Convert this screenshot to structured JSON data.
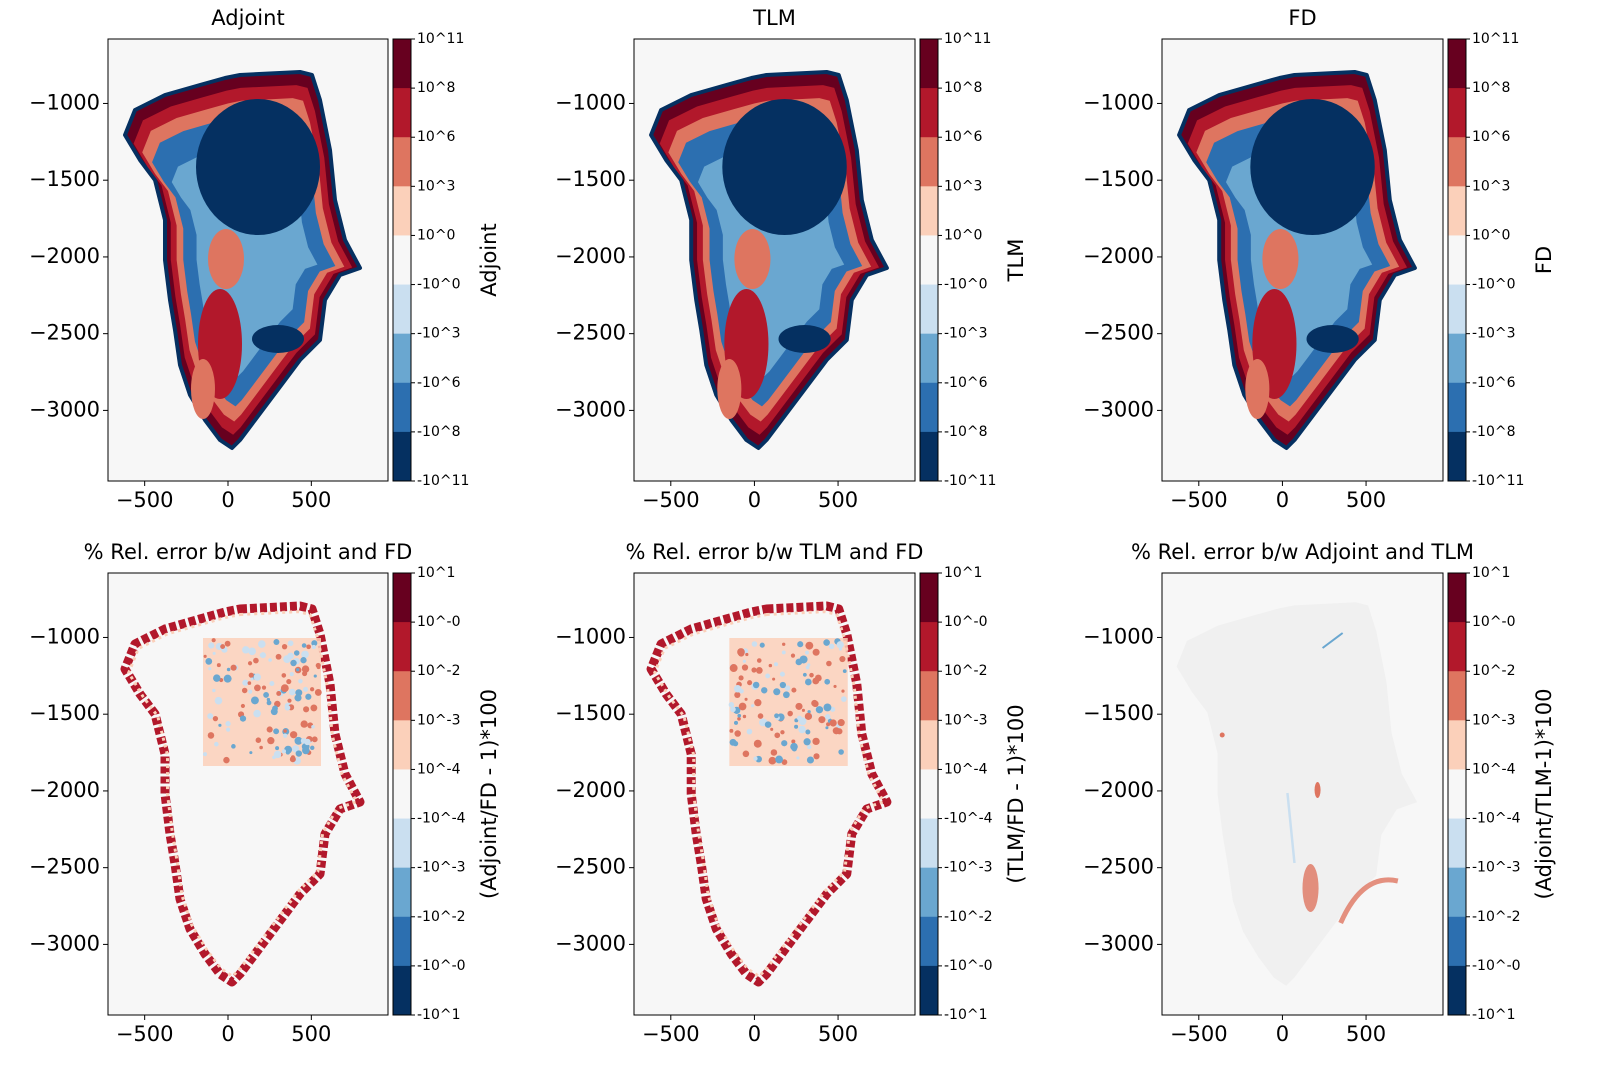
{
  "chart_data": [
    {
      "type": "map",
      "title": "Adjoint",
      "xlim": [
        -720,
        960
      ],
      "ylim": [
        -3460,
        -580
      ],
      "xticks": [
        {
          "value": -500,
          "label": "−500"
        },
        0,
        500
      ],
      "yticks": [
        {
          "value": -1000,
          "label": "−1000"
        },
        {
          "value": -1500,
          "label": "−1500"
        },
        {
          "value": -2000,
          "label": "−2000"
        },
        {
          "value": -2500,
          "label": "−2500"
        },
        {
          "value": -3000,
          "label": "−3000"
        }
      ],
      "colorbar": {
        "label": "Adjoint",
        "ticks": [
          "10^11",
          "10^8",
          "10^6",
          "10^3",
          "10^0",
          "-10^0",
          "-10^3",
          "-10^6",
          "-10^8",
          "-10^11"
        ],
        "colors": [
          "#67001f",
          "#b2182b",
          "#de7560",
          "#fbd0ba",
          "#f7f7f7",
          "#cadff0",
          "#6aa7d0",
          "#2c6fb0",
          "#053061"
        ]
      }
    },
    {
      "type": "map",
      "title": "TLM",
      "xlim": [
        -720,
        960
      ],
      "ylim": [
        -3460,
        -580
      ],
      "xticks": [
        {
          "value": -500,
          "label": "−500"
        },
        0,
        500
      ],
      "yticks": [
        {
          "value": -1000,
          "label": "−1000"
        },
        {
          "value": -1500,
          "label": "−1500"
        },
        {
          "value": -2000,
          "label": "−2000"
        },
        {
          "value": -2500,
          "label": "−2500"
        },
        {
          "value": -3000,
          "label": "−3000"
        }
      ],
      "colorbar": {
        "label": "TLM",
        "ticks": [
          "10^11",
          "10^8",
          "10^6",
          "10^3",
          "10^0",
          "-10^0",
          "-10^3",
          "-10^6",
          "-10^8",
          "-10^11"
        ],
        "colors": [
          "#67001f",
          "#b2182b",
          "#de7560",
          "#fbd0ba",
          "#f7f7f7",
          "#cadff0",
          "#6aa7d0",
          "#2c6fb0",
          "#053061"
        ]
      }
    },
    {
      "type": "map",
      "title": "FD",
      "xlim": [
        -720,
        960
      ],
      "ylim": [
        -3460,
        -580
      ],
      "xticks": [
        {
          "value": -500,
          "label": "−500"
        },
        0,
        500
      ],
      "yticks": [
        {
          "value": -1000,
          "label": "−1000"
        },
        {
          "value": -1500,
          "label": "−1500"
        },
        {
          "value": -2000,
          "label": "−2000"
        },
        {
          "value": -2500,
          "label": "−2500"
        },
        {
          "value": -3000,
          "label": "−3000"
        }
      ],
      "colorbar": {
        "label": "FD",
        "ticks": [
          "10^11",
          "10^8",
          "10^6",
          "10^3",
          "10^0",
          "-10^0",
          "-10^3",
          "-10^6",
          "-10^8",
          "-10^11"
        ],
        "colors": [
          "#67001f",
          "#b2182b",
          "#de7560",
          "#fbd0ba",
          "#f7f7f7",
          "#cadff0",
          "#6aa7d0",
          "#2c6fb0",
          "#053061"
        ]
      }
    },
    {
      "type": "map",
      "title": "% Rel. error b/w Adjoint and FD",
      "xlim": [
        -720,
        960
      ],
      "ylim": [
        -3460,
        -580
      ],
      "xticks": [
        {
          "value": -500,
          "label": "−500"
        },
        0,
        500
      ],
      "yticks": [
        {
          "value": -1000,
          "label": "−1000"
        },
        {
          "value": -1500,
          "label": "−1500"
        },
        {
          "value": -2000,
          "label": "−2000"
        },
        {
          "value": -2500,
          "label": "−2500"
        },
        {
          "value": -3000,
          "label": "−3000"
        }
      ],
      "colorbar": {
        "label": "(Adjoint/FD - 1)*100",
        "ticks": [
          "10^1",
          "10^-0",
          "10^-2",
          "10^-3",
          "10^-4",
          "-10^-4",
          "-10^-3",
          "-10^-2",
          "-10^-0",
          "-10^1"
        ],
        "colors": [
          "#67001f",
          "#b2182b",
          "#de7560",
          "#fbd0ba",
          "#f7f7f7",
          "#cadff0",
          "#6aa7d0",
          "#2c6fb0",
          "#053061"
        ]
      }
    },
    {
      "type": "map",
      "title": "% Rel. error b/w TLM and FD",
      "xlim": [
        -720,
        960
      ],
      "ylim": [
        -3460,
        -580
      ],
      "xticks": [
        {
          "value": -500,
          "label": "−500"
        },
        0,
        500
      ],
      "yticks": [
        {
          "value": -1000,
          "label": "−1000"
        },
        {
          "value": -1500,
          "label": "−1500"
        },
        {
          "value": -2000,
          "label": "−2000"
        },
        {
          "value": -2500,
          "label": "−2500"
        },
        {
          "value": -3000,
          "label": "−3000"
        }
      ],
      "colorbar": {
        "label": "(TLM/FD - 1)*100",
        "ticks": [
          "10^1",
          "10^-0",
          "10^-2",
          "10^-3",
          "10^-4",
          "-10^-4",
          "-10^-3",
          "-10^-2",
          "-10^-0",
          "-10^1"
        ],
        "colors": [
          "#67001f",
          "#b2182b",
          "#de7560",
          "#fbd0ba",
          "#f7f7f7",
          "#cadff0",
          "#6aa7d0",
          "#2c6fb0",
          "#053061"
        ]
      }
    },
    {
      "type": "map",
      "title": "% Rel. error b/w Adjoint and TLM",
      "xlim": [
        -720,
        960
      ],
      "ylim": [
        -3460,
        -580
      ],
      "xticks": [
        {
          "value": -500,
          "label": "−500"
        },
        0,
        500
      ],
      "yticks": [
        {
          "value": -1000,
          "label": "−1000"
        },
        {
          "value": -1500,
          "label": "−1500"
        },
        {
          "value": -2000,
          "label": "−2000"
        },
        {
          "value": -2500,
          "label": "−2500"
        },
        {
          "value": -3000,
          "label": "−3000"
        }
      ],
      "colorbar": {
        "label": "(Adjoint/TLM-1)*100",
        "ticks": [
          "10^1",
          "10^-0",
          "10^-2",
          "10^-3",
          "10^-4",
          "-10^-4",
          "-10^-3",
          "-10^-2",
          "-10^-0",
          "-10^1"
        ],
        "colors": [
          "#67001f",
          "#b2182b",
          "#de7560",
          "#fbd0ba",
          "#f7f7f7",
          "#cadff0",
          "#6aa7d0",
          "#2c6fb0",
          "#053061"
        ]
      }
    }
  ]
}
